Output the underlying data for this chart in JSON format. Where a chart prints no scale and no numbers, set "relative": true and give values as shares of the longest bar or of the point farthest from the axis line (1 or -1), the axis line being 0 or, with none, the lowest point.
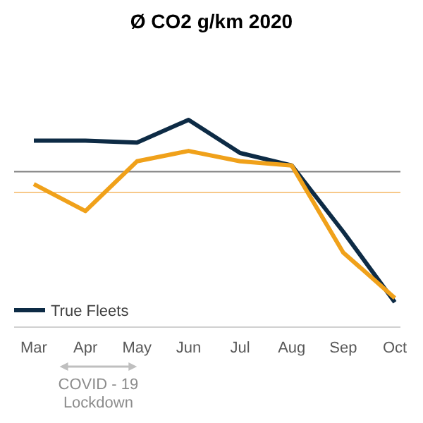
{
  "chart_data": {
    "type": "line",
    "title": "Ø CO2 g/km 2020",
    "relative": true,
    "categories": [
      "Mar",
      "Apr",
      "May",
      "Jun",
      "Jul",
      "Aug",
      "Sep",
      "Oct"
    ],
    "series": [
      {
        "name": "True Fleets",
        "color": "#0d2b45",
        "values": [
          0.9,
          0.9,
          0.89,
          1.0,
          0.84,
          0.78,
          0.46,
          0.12
        ]
      },
      {
        "color": "#f0a11a",
        "values": [
          0.69,
          0.56,
          0.8,
          0.85,
          0.8,
          0.78,
          0.36,
          0.14
        ]
      }
    ],
    "ref_lines": [
      {
        "axis": "y",
        "value": 0.75,
        "color": "#7f7f7f"
      },
      {
        "axis": "y",
        "value": 0.65,
        "color": "#f7c98a"
      }
    ],
    "annotations": [
      "COVID - 19 Lockdown"
    ],
    "legend": "bottom left",
    "marker": "none",
    "line_style": "solid",
    "grid": false
  }
}
